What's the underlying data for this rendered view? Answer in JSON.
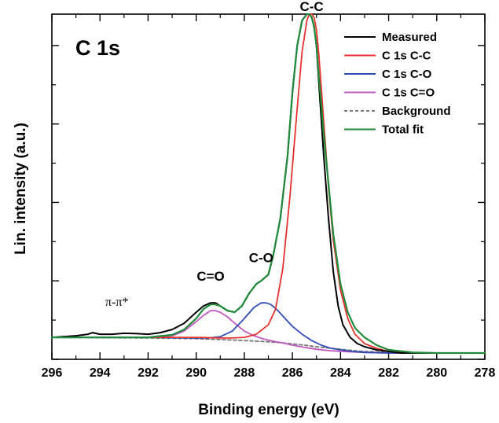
{
  "chart_data": {
    "type": "line",
    "panel_label": "C 1s",
    "xlabel": "Binding energy (eV)",
    "ylabel": "Lin. intensity (a.u.)",
    "xlim": [
      296,
      278
    ],
    "x_reversed": true,
    "ylim": [
      0,
      1.1
    ],
    "y_tick_labels_shown": false,
    "x_ticks": [
      296,
      294,
      292,
      290,
      288,
      286,
      284,
      282,
      280,
      278
    ],
    "x_tick_labels": [
      "296",
      "294",
      "292",
      "290",
      "288",
      "286",
      "284",
      "282",
      "280",
      "278"
    ],
    "y_ticks": [
      0.0,
      0.25,
      0.5,
      0.75,
      1.0
    ],
    "legend": {
      "position": "top-right",
      "entries": [
        {
          "label": "Measured",
          "color": "#000000",
          "dashed": false
        },
        {
          "label": "C 1s C-C",
          "color": "#e8322f",
          "dashed": false
        },
        {
          "label": "C 1s C-O",
          "color": "#2f4bb5",
          "dashed": false
        },
        {
          "label": "C 1s C=O",
          "color": "#c158c0",
          "dashed": false
        },
        {
          "label": "Background",
          "color": "#777777",
          "dashed": true
        },
        {
          "label": "Total fit",
          "color": "#1f8a3a",
          "dashed": false
        }
      ]
    },
    "annotations": [
      {
        "text": "C-C",
        "x": 285.2,
        "y": 1.11
      },
      {
        "text": "C-O",
        "x": 287.3,
        "y": 0.31
      },
      {
        "text": "C=O",
        "x": 289.4,
        "y": 0.25
      },
      {
        "text": "π-π*",
        "x": 293.3,
        "y": 0.17
      }
    ],
    "series": [
      {
        "name": "Measured",
        "color": "#000000",
        "x": [
          296,
          295,
          294.5,
          294.3,
          294,
          293.5,
          293,
          292.5,
          292,
          291.5,
          291,
          290.5,
          290,
          289.7,
          289.4,
          289.2,
          289,
          288.7,
          288.4,
          288.1,
          287.8,
          287.5,
          287.3,
          287.0,
          286.8,
          286.5,
          286.2,
          286.0,
          285.8,
          285.6,
          285.4,
          285.3,
          285.2,
          285.1,
          285.0,
          284.9,
          284.7,
          284.5,
          284.3,
          284.1,
          283.9,
          283.6,
          283.3,
          283.0,
          282.5,
          282.0,
          281.5,
          281,
          280,
          279,
          278
        ],
        "y": [
          0.07,
          0.075,
          0.08,
          0.085,
          0.08,
          0.08,
          0.083,
          0.082,
          0.08,
          0.085,
          0.095,
          0.115,
          0.15,
          0.17,
          0.18,
          0.18,
          0.17,
          0.155,
          0.15,
          0.17,
          0.21,
          0.24,
          0.25,
          0.27,
          0.33,
          0.45,
          0.65,
          0.85,
          1.0,
          1.08,
          1.1,
          1.1,
          1.09,
          1.06,
          1.0,
          0.88,
          0.65,
          0.45,
          0.28,
          0.17,
          0.11,
          0.07,
          0.05,
          0.04,
          0.03,
          0.025,
          0.02,
          0.02,
          0.02,
          0.02,
          0.02
        ]
      },
      {
        "name": "C 1s C-C",
        "color": "#e8322f",
        "x": [
          296,
          292,
          290,
          289,
          288.5,
          288,
          287.5,
          287,
          286.7,
          286.4,
          286.1,
          285.8,
          285.6,
          285.4,
          285.3,
          285.2,
          285.1,
          285.0,
          284.9,
          284.7,
          284.5,
          284.3,
          284.0,
          283.7,
          283.4,
          283.0,
          282.5,
          282,
          281,
          280,
          278
        ],
        "y": [
          0.07,
          0.07,
          0.07,
          0.068,
          0.068,
          0.07,
          0.08,
          0.11,
          0.16,
          0.29,
          0.52,
          0.8,
          0.98,
          1.08,
          1.1,
          1.1,
          1.09,
          1.05,
          0.97,
          0.76,
          0.55,
          0.38,
          0.22,
          0.13,
          0.08,
          0.05,
          0.035,
          0.025,
          0.02,
          0.02,
          0.02
        ]
      },
      {
        "name": "C 1s C-O",
        "color": "#2f4bb5",
        "x": [
          296,
          292,
          290,
          289.5,
          289,
          288.5,
          288.0,
          287.6,
          287.3,
          287.1,
          286.9,
          286.6,
          286.3,
          286.0,
          285.6,
          285.2,
          284.8,
          284.4,
          284.0,
          283.5,
          283.0,
          282,
          281,
          280,
          278
        ],
        "y": [
          0.07,
          0.07,
          0.068,
          0.068,
          0.072,
          0.09,
          0.13,
          0.165,
          0.18,
          0.18,
          0.175,
          0.155,
          0.13,
          0.105,
          0.08,
          0.06,
          0.045,
          0.035,
          0.03,
          0.025,
          0.022,
          0.02,
          0.02,
          0.02,
          0.02
        ]
      },
      {
        "name": "C 1s C=O",
        "color": "#c158c0",
        "x": [
          296,
          292,
          291,
          290.5,
          290,
          289.7,
          289.4,
          289.2,
          289.0,
          288.7,
          288.4,
          288.0,
          287.6,
          287.2,
          286.8,
          286.4,
          286.0,
          285.5,
          285.0,
          284.5,
          284.0,
          283,
          282,
          280,
          278
        ],
        "y": [
          0.07,
          0.07,
          0.075,
          0.09,
          0.12,
          0.14,
          0.155,
          0.155,
          0.15,
          0.135,
          0.115,
          0.09,
          0.075,
          0.065,
          0.058,
          0.052,
          0.045,
          0.038,
          0.032,
          0.028,
          0.025,
          0.022,
          0.02,
          0.02,
          0.02
        ]
      },
      {
        "name": "Background",
        "color": "#777777",
        "dashed": true,
        "x": [
          296,
          292,
          290,
          289,
          288,
          287,
          286.5,
          286,
          285.5,
          285,
          284.5,
          284,
          283.5,
          283,
          282,
          280,
          278
        ],
        "y": [
          0.07,
          0.068,
          0.066,
          0.063,
          0.06,
          0.056,
          0.053,
          0.049,
          0.045,
          0.04,
          0.036,
          0.032,
          0.028,
          0.025,
          0.022,
          0.02,
          0.02
        ]
      },
      {
        "name": "Total fit",
        "color": "#1f8a3a",
        "x": [
          296,
          292,
          291,
          290.5,
          290,
          289.7,
          289.4,
          289.2,
          289.0,
          288.7,
          288.4,
          288.1,
          287.8,
          287.5,
          287.3,
          287.0,
          286.8,
          286.5,
          286.2,
          286.0,
          285.8,
          285.6,
          285.4,
          285.3,
          285.2,
          285.1,
          285.0,
          284.9,
          284.7,
          284.5,
          284.3,
          284.0,
          283.7,
          283.4,
          283.0,
          282.5,
          282,
          281,
          280,
          278
        ],
        "y": [
          0.07,
          0.07,
          0.078,
          0.095,
          0.13,
          0.16,
          0.175,
          0.175,
          0.17,
          0.155,
          0.15,
          0.17,
          0.21,
          0.24,
          0.25,
          0.27,
          0.33,
          0.45,
          0.65,
          0.85,
          1.0,
          1.08,
          1.1,
          1.1,
          1.09,
          1.06,
          1.0,
          0.9,
          0.72,
          0.56,
          0.4,
          0.24,
          0.15,
          0.1,
          0.07,
          0.045,
          0.03,
          0.022,
          0.02,
          0.02
        ]
      }
    ]
  }
}
